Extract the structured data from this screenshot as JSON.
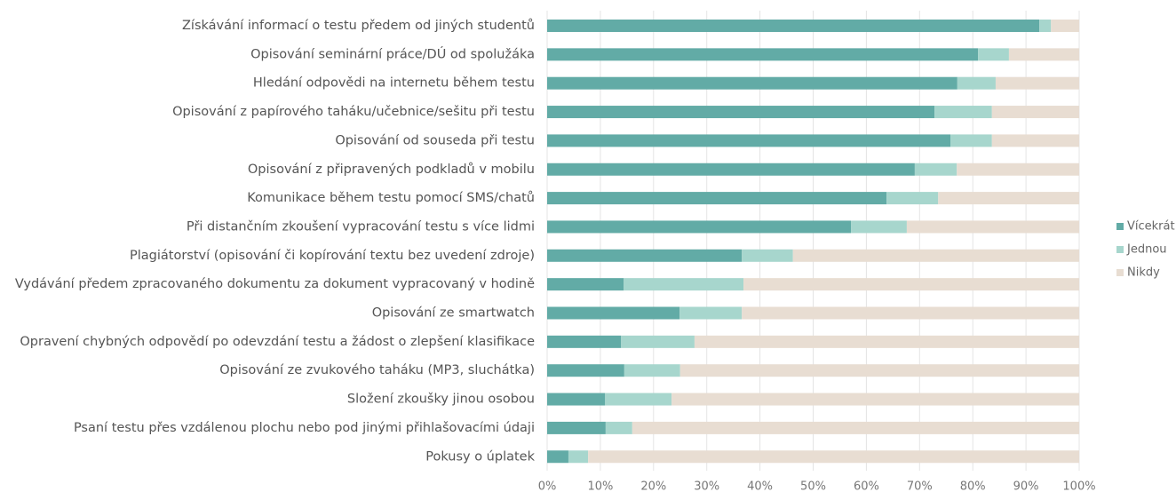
{
  "chart_data": {
    "type": "stacked_barh",
    "categories": [
      "Získávání informací o testu předem od jiných studentů",
      "Opisování seminární práce/DÚ od spolužáka",
      "Hledání odpovědi na internetu během testu",
      "Opisování z papírového taháku/učebnice/sešitu při testu",
      "Opisování od souseda při testu",
      "Opisování z připravených podkladů v mobilu",
      "Komunikace během testu pomocí SMS/chatů",
      "Při distančním zkoušení vypracování testu s více lidmi",
      "Plagiátorství (opisování či kopírování textu bez uvedení zdroje)",
      "Vydávání předem zpracovaného dokumentu za dokument vypracovaný v hodině",
      "Opisování ze smartwatch",
      "Opravení chybných odpovědí po odevzdání testu a žádost o zlepšení klasifikace",
      "Opisování ze zvukového taháku (MP3, sluchátka)",
      "Složení zkoušky jinou osobou",
      "Psaní testu přes vzdálenou plochu nebo pod jinými přihlašovacími údaji",
      "Pokusy o úplatek"
    ],
    "series": [
      {
        "name": "Vícekrát",
        "color": "#62aba6",
        "values": [
          92.5,
          81,
          77.1,
          72.8,
          75.8,
          69.1,
          63.8,
          57.1,
          36.6,
          14.4,
          24.9,
          13.9,
          14.5,
          10.9,
          11,
          4
        ]
      },
      {
        "name": "Jednou",
        "color": "#a7d6cd",
        "values": [
          2.2,
          5.8,
          7.2,
          10.8,
          7.8,
          7.9,
          9.7,
          10.5,
          9.6,
          22.5,
          11.7,
          13.8,
          10.5,
          12.5,
          5,
          3.7
        ]
      },
      {
        "name": "Nikdy",
        "color": "#e8ddd2",
        "values": [
          5.3,
          13.2,
          15.7,
          16.4,
          16.4,
          23,
          26.5,
          32.4,
          53.8,
          63.1,
          63.4,
          72.3,
          75,
          76.6,
          84,
          92.3
        ]
      }
    ],
    "xlim": [
      0,
      100
    ],
    "xticks": [
      {
        "value": 0,
        "label": "0%"
      },
      {
        "value": 10,
        "label": "10%"
      },
      {
        "value": 20,
        "label": "20%"
      },
      {
        "value": 30,
        "label": "30%"
      },
      {
        "value": 40,
        "label": "40%"
      },
      {
        "value": 50,
        "label": "50%"
      },
      {
        "value": 60,
        "label": "60%"
      },
      {
        "value": 70,
        "label": "70%"
      },
      {
        "value": 80,
        "label": "80%"
      },
      {
        "value": 90,
        "label": "90%"
      },
      {
        "value": 100,
        "label": "100%"
      }
    ],
    "grid": true,
    "legend": "right"
  }
}
